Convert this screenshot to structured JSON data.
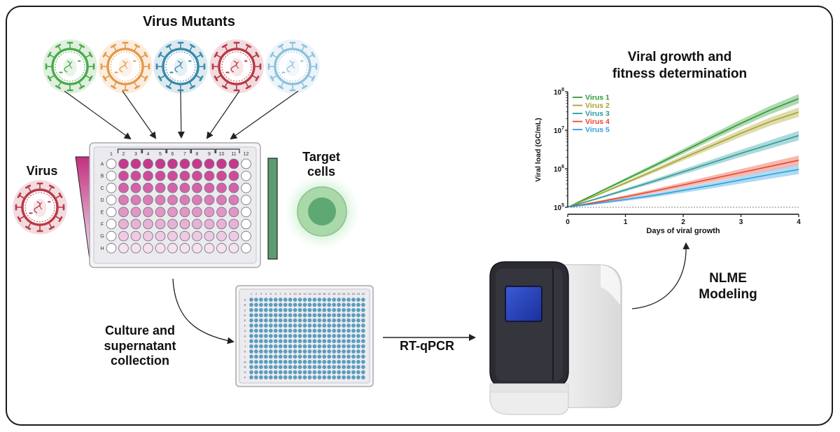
{
  "labels": {
    "virus_mutants": "Virus Mutants",
    "virus": "Virus",
    "target_cells_1": "Target",
    "target_cells_2": "cells",
    "culture_1": "Culture and",
    "culture_2": "supernatant",
    "culture_3": "collection",
    "rtqpcr": "RT-qPCR",
    "nlme_1": "NLME",
    "nlme_2": "Modeling"
  },
  "plate96": {
    "columns": [
      "1",
      "2",
      "3",
      "4",
      "5",
      "6",
      "7",
      "8",
      "9",
      "10",
      "11",
      "12"
    ],
    "rows": [
      "A",
      "B",
      "C",
      "D",
      "E",
      "F",
      "G",
      "H"
    ],
    "row_colors": [
      "#c8378e",
      "#cf4b9a",
      "#d562a8",
      "#dc7bb7",
      "#e296c6",
      "#e8b1d5",
      "#efcae3",
      "#f6e2ef"
    ]
  },
  "plate384": {
    "columns": [
      "1",
      "2",
      "3",
      "4",
      "5",
      "6",
      "7",
      "8",
      "9",
      "10",
      "11",
      "12",
      "13",
      "14",
      "15",
      "16",
      "17",
      "18",
      "19",
      "20",
      "21",
      "22",
      "23",
      "24"
    ],
    "rows": [
      "A",
      "B",
      "C",
      "D",
      "E",
      "F",
      "G",
      "H",
      "I",
      "J",
      "K",
      "L",
      "M",
      "N",
      "O",
      "P"
    ],
    "well_color": "#5b9dbd"
  },
  "virus_colors": [
    "#4caa4c",
    "#e59a4a",
    "#3b8aaa",
    "#b93a48",
    "#8fc1dc"
  ],
  "chart_data": {
    "type": "line",
    "title": "Viral growth and fitness determination",
    "xlabel": "Days of viral growth",
    "ylabel": "Viral load (GC/mL)",
    "xlim": [
      0,
      4
    ],
    "ylim_log10": [
      5,
      8
    ],
    "x_ticks": [
      "0",
      "1",
      "2",
      "3",
      "4"
    ],
    "y_ticks": [
      "10",
      "10",
      "10",
      "10"
    ],
    "y_tick_exps": [
      "5",
      "6",
      "7",
      "8"
    ],
    "y_scale": "log",
    "legend_position": "top-left",
    "reference_line_log10": 5,
    "x": [
      0,
      0.5,
      1,
      1.5,
      2,
      2.5,
      3,
      3.5,
      4
    ],
    "series": [
      {
        "name": "Virus 1",
        "color": "#2e9a35",
        "log10_values": [
          5.0,
          5.36,
          5.72,
          6.08,
          6.45,
          6.82,
          7.18,
          7.52,
          7.82
        ]
      },
      {
        "name": "Virus 2",
        "color": "#a8a32c",
        "log10_values": [
          5.0,
          5.31,
          5.63,
          5.95,
          6.28,
          6.6,
          6.92,
          7.22,
          7.47
        ]
      },
      {
        "name": "Virus 3",
        "color": "#2a9a9c",
        "log10_values": [
          5.0,
          5.22,
          5.45,
          5.68,
          5.92,
          6.16,
          6.4,
          6.63,
          6.86
        ]
      },
      {
        "name": "Virus 4",
        "color": "#e8452e",
        "log10_values": [
          5.0,
          5.13,
          5.27,
          5.42,
          5.58,
          5.74,
          5.9,
          6.06,
          6.22
        ]
      },
      {
        "name": "Virus 5",
        "color": "#2e9fdd",
        "log10_values": [
          5.0,
          5.1,
          5.2,
          5.31,
          5.44,
          5.57,
          5.71,
          5.85,
          5.98
        ]
      }
    ]
  }
}
